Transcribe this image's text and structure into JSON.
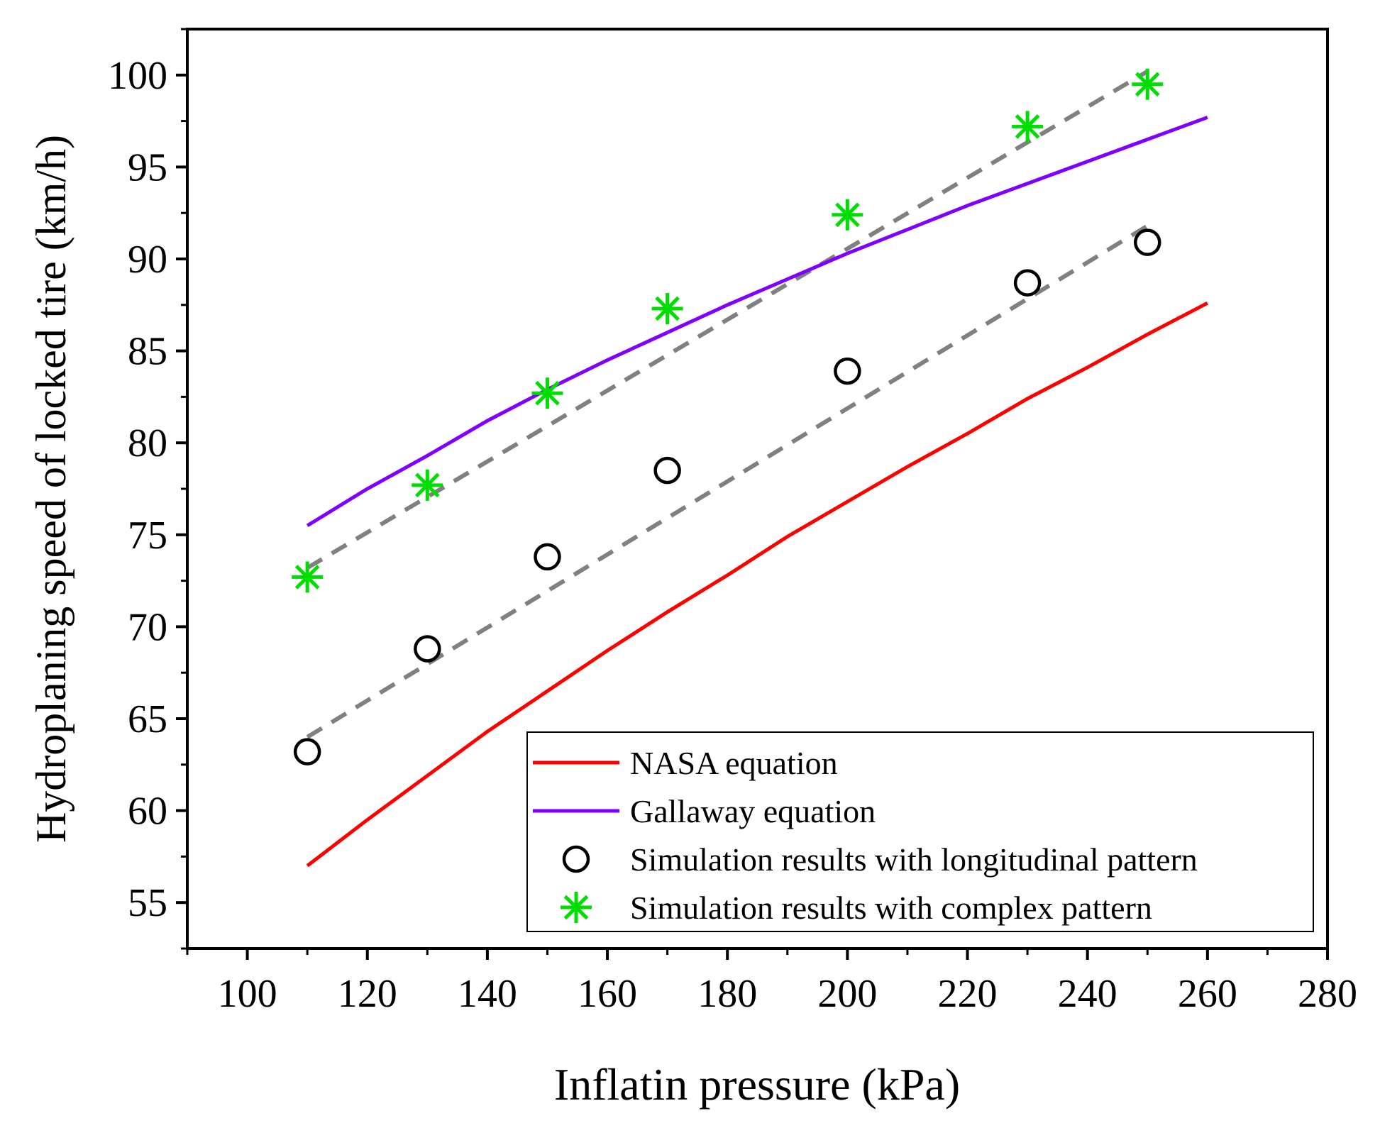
{
  "chart_data": {
    "type": "line",
    "title": "",
    "xlabel": "Inflatin pressure (kPa)",
    "ylabel": "Hydroplaning speed of locked tire (km/h)",
    "xlim": [
      90,
      280
    ],
    "ylim": [
      52.5,
      102.5
    ],
    "xticks": [
      100,
      120,
      140,
      160,
      180,
      200,
      220,
      240,
      260,
      280
    ],
    "yticks": [
      55,
      60,
      65,
      70,
      75,
      80,
      85,
      90,
      95,
      100
    ],
    "grid": false,
    "legend_position": "bottom-right",
    "series": [
      {
        "name": "NASA equation",
        "kind": "line",
        "color": "#ff0000",
        "x": [
          110,
          120,
          130,
          140,
          150,
          160,
          170,
          180,
          190,
          200,
          210,
          220,
          230,
          240,
          250,
          260
        ],
        "y": [
          57.0,
          59.5,
          61.9,
          64.3,
          66.5,
          68.7,
          70.8,
          72.8,
          74.9,
          76.8,
          78.7,
          80.5,
          82.4,
          84.1,
          85.9,
          87.6
        ]
      },
      {
        "name": "Gallaway equation",
        "kind": "line",
        "color": "#8000ff",
        "x": [
          110,
          120,
          130,
          140,
          150,
          160,
          170,
          180,
          190,
          200,
          210,
          220,
          230,
          240,
          250,
          260
        ],
        "y": [
          75.5,
          77.5,
          79.3,
          81.2,
          82.9,
          84.5,
          86.0,
          87.5,
          88.9,
          90.3,
          91.6,
          92.9,
          94.1,
          95.3,
          96.5,
          97.7
        ]
      },
      {
        "name": "Simulation results with longitudinal pattern",
        "kind": "marker-circle",
        "color": "#000000",
        "x": [
          110,
          130,
          150,
          170,
          200,
          230,
          250
        ],
        "y": [
          63.2,
          68.8,
          73.8,
          78.5,
          83.9,
          88.7,
          90.9
        ]
      },
      {
        "name": "Simulation results with complex pattern",
        "kind": "marker-asterisk",
        "color": "#00cc00",
        "x": [
          110,
          130,
          150,
          170,
          200,
          230,
          250
        ],
        "y": [
          72.7,
          77.7,
          82.7,
          87.3,
          92.4,
          97.2,
          99.5
        ]
      },
      {
        "name": "",
        "kind": "fit-dashed",
        "color": "#808080",
        "x": [
          110,
          250
        ],
        "y": [
          64.0,
          91.8
        ]
      },
      {
        "name": "",
        "kind": "fit-dashed",
        "color": "#808080",
        "x": [
          110,
          250
        ],
        "y": [
          73.2,
          100.2
        ]
      }
    ]
  }
}
